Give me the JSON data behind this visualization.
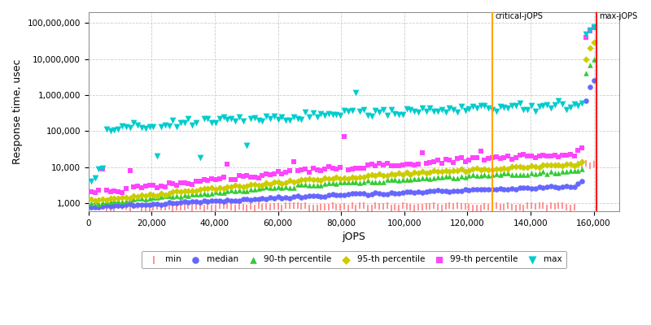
{
  "title": "",
  "xlabel": "jOPS",
  "ylabel": "Response time, usec",
  "xlim": [
    0,
    168000
  ],
  "ylim_log": [
    600,
    200000000
  ],
  "critical_jops": 128000,
  "max_jops": 161000,
  "critical_label": "critical-jOPS",
  "max_label": "max-jOPS",
  "critical_color": "#FFA500",
  "max_color": "#FF0000",
  "background_color": "#FFFFFF",
  "grid_color": "#CCCCCC",
  "series": {
    "min": {
      "color": "#FF8080",
      "marker": "|",
      "markersize": 3,
      "label": "min"
    },
    "median": {
      "color": "#6666FF",
      "marker": "o",
      "markersize": 4,
      "label": "median"
    },
    "p90": {
      "color": "#33CC33",
      "marker": "^",
      "markersize": 4,
      "label": "90-th percentile"
    },
    "p95": {
      "color": "#CCCC00",
      "marker": "D",
      "markersize": 3,
      "label": "95-th percentile"
    },
    "p99": {
      "color": "#FF44FF",
      "marker": "s",
      "markersize": 3,
      "label": "99-th percentile"
    },
    "max": {
      "color": "#00CCCC",
      "marker": "v",
      "markersize": 5,
      "label": "max"
    }
  },
  "xticks": [
    0,
    20000,
    40000,
    60000,
    80000,
    100000,
    120000,
    140000,
    160000
  ],
  "yticks": [
    1000,
    10000,
    100000,
    1000000,
    10000000,
    100000000
  ]
}
